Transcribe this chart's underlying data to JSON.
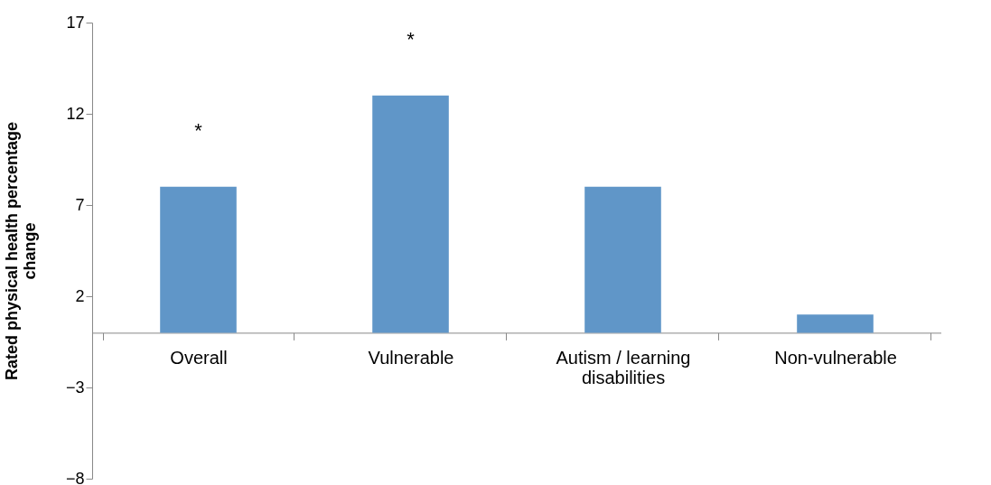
{
  "chart_data": {
    "type": "bar",
    "ylabel": "Rated physical health percentage change",
    "categories": [
      "Overall",
      "Vulnerable",
      "Autism / learning disabilities",
      "Non-vulnerable"
    ],
    "values": [
      8,
      13,
      8,
      1
    ],
    "color": "#6096c8",
    "ylim": [
      -8,
      17
    ],
    "yticks": [
      -8,
      -3,
      2,
      7,
      12,
      17
    ],
    "grid": false,
    "annotations": [
      "*",
      "*"
    ]
  }
}
